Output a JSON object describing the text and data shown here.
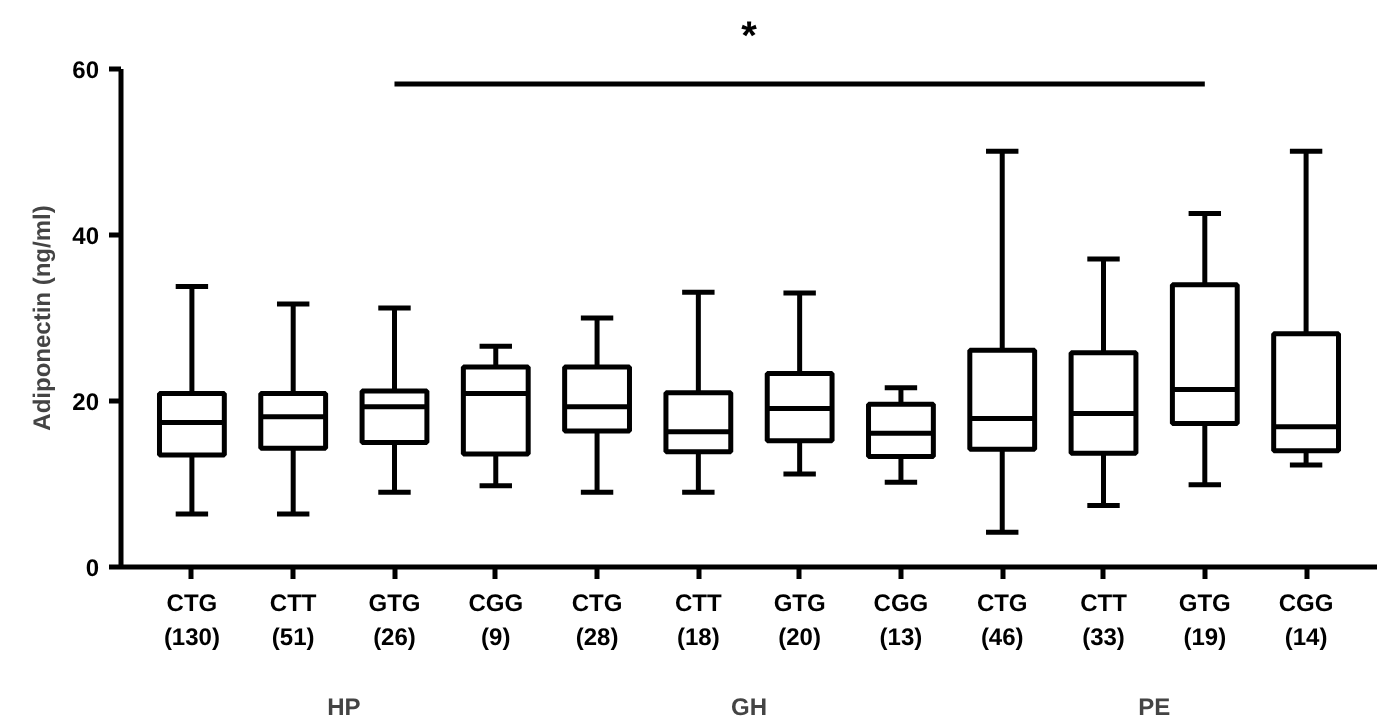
{
  "chart_data": {
    "type": "box",
    "ylabel": "Adiponectin (ng/ml)",
    "categories": [
      "CTG\n(130)",
      "CTT\n(51)",
      "GTG\n(26)",
      "CGG\n(9)",
      "CTG\n(28)",
      "CTT\n(18)",
      "GTG\n(20)",
      "CGG\n(13)",
      "CTG\n(46)",
      "CTT\n(33)",
      "GTG\n(19)",
      "CGG\n(14)"
    ],
    "boxes": [
      {
        "low": 6.4,
        "q1": 13.5,
        "median": 17.4,
        "q3": 20.9,
        "high": 33.8
      },
      {
        "low": 6.4,
        "q1": 14.3,
        "median": 18.1,
        "q3": 20.9,
        "high": 31.7
      },
      {
        "low": 9.0,
        "q1": 15.0,
        "median": 19.3,
        "q3": 21.2,
        "high": 31.2
      },
      {
        "low": 9.8,
        "q1": 13.6,
        "median": 20.9,
        "q3": 24.1,
        "high": 26.6
      },
      {
        "low": 9.0,
        "q1": 16.4,
        "median": 19.3,
        "q3": 24.1,
        "high": 30.0
      },
      {
        "low": 9.0,
        "q1": 13.9,
        "median": 16.3,
        "q3": 21.0,
        "high": 33.1
      },
      {
        "low": 11.2,
        "q1": 15.2,
        "median": 19.1,
        "q3": 23.3,
        "high": 33.0
      },
      {
        "low": 10.2,
        "q1": 13.3,
        "median": 16.1,
        "q3": 19.6,
        "high": 21.6
      },
      {
        "low": 4.2,
        "q1": 14.2,
        "median": 17.9,
        "q3": 26.1,
        "high": 50.1
      },
      {
        "low": 7.4,
        "q1": 13.7,
        "median": 18.5,
        "q3": 25.8,
        "high": 37.1
      },
      {
        "low": 9.9,
        "q1": 17.3,
        "median": 21.4,
        "q3": 34.0,
        "high": 42.6
      },
      {
        "low": 12.3,
        "q1": 14.0,
        "median": 16.9,
        "q3": 28.1,
        "high": 50.1
      }
    ],
    "annotations": [
      "*",
      "HP",
      "GH",
      "PE"
    ],
    "ylim": [
      0,
      60
    ],
    "yticks": [
      0,
      20,
      40,
      60
    ],
    "grid": false
  }
}
